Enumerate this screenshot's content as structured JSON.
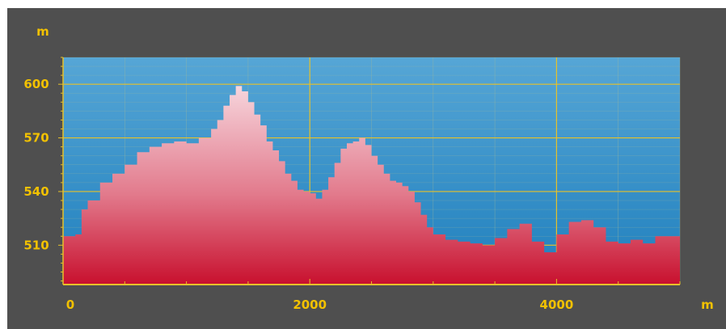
{
  "chart_data": {
    "type": "area",
    "title": "",
    "xlabel": "m",
    "ylabel": "m",
    "xlim": [
      0,
      5000
    ],
    "ylim": [
      488,
      615
    ],
    "grid": true,
    "x_ticks": [
      0,
      2000,
      4000
    ],
    "y_ticks": [
      510,
      540,
      570,
      600
    ],
    "x_tick_labels": [
      "0",
      "2000",
      "4000"
    ],
    "y_tick_labels": [
      "510",
      "540",
      "570",
      "600"
    ],
    "colors": {
      "plot_bg_top": "#56a6d6",
      "plot_bg_bottom": "#1f7fbd",
      "grid_major": "#e6c12a",
      "grid_minor": "#9fb89a",
      "fill_top": "#f7d7de",
      "fill_mid": "#e27a8c",
      "fill_bottom": "#c8102e",
      "text": "#f2c100",
      "frame": "#4f4f4f"
    },
    "series": [
      {
        "x": [
          0,
          100,
          150,
          200,
          300,
          400,
          500,
          600,
          700,
          800,
          900,
          1000,
          1100,
          1200,
          1250,
          1300,
          1350,
          1400,
          1450,
          1500,
          1550,
          1600,
          1650,
          1700,
          1750,
          1800,
          1850,
          1900,
          1950,
          2000,
          2050,
          2100,
          2150,
          2200,
          2250,
          2300,
          2350,
          2400,
          2450,
          2500,
          2550,
          2600,
          2650,
          2700,
          2750,
          2800,
          2850,
          2900,
          2950,
          3000,
          3050,
          3100,
          3150,
          3200,
          3300,
          3400,
          3500,
          3600,
          3700,
          3800,
          3900,
          3950,
          4000,
          4100,
          4200,
          4300,
          4400,
          4500,
          4600,
          4700,
          4800,
          4900,
          5000
        ],
        "values": [
          515,
          516,
          530,
          535,
          545,
          550,
          555,
          562,
          565,
          567,
          568,
          567,
          570,
          575,
          580,
          588,
          594,
          599,
          596,
          590,
          583,
          577,
          568,
          563,
          557,
          550,
          546,
          541,
          540,
          539,
          536,
          541,
          548,
          556,
          564,
          567,
          568,
          570,
          566,
          560,
          555,
          550,
          546,
          545,
          543,
          540,
          534,
          527,
          520,
          516,
          516,
          513,
          513,
          512,
          511,
          510,
          514,
          519,
          522,
          512,
          506,
          506,
          516,
          523,
          524,
          520,
          512,
          511,
          513,
          511,
          515,
          515,
          515
        ]
      }
    ]
  }
}
